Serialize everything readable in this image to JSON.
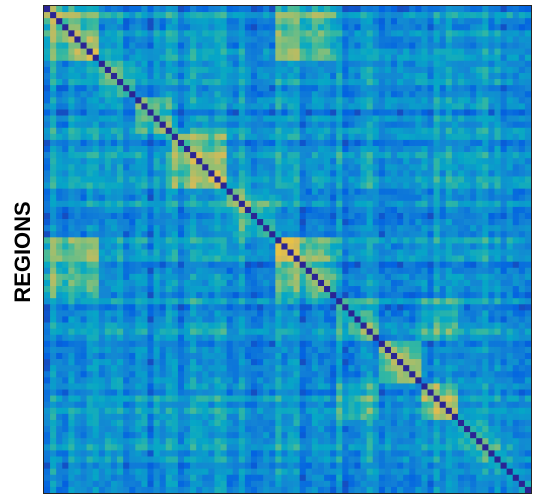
{
  "chart_data": {
    "type": "heatmap",
    "title": "",
    "xlabel": "",
    "ylabel": "REGIONS",
    "n_regions": 80,
    "diagonal_value": 0.0,
    "value_range": [
      0,
      1
    ],
    "colormap": "parula",
    "colormap_stops": [
      "#352a87",
      "#0363e1",
      "#1485d4",
      "#06a7c6",
      "#38b99e",
      "#92bf73",
      "#d9ba56",
      "#fcce2e",
      "#f9fb0e"
    ],
    "modules": [
      {
        "start": 0,
        "end": 9,
        "within": 0.74
      },
      {
        "start": 9,
        "end": 15,
        "within": 0.55
      },
      {
        "start": 15,
        "end": 21,
        "within": 0.62
      },
      {
        "start": 21,
        "end": 30,
        "within": 0.7
      },
      {
        "start": 30,
        "end": 38,
        "within": 0.66
      },
      {
        "start": 38,
        "end": 48,
        "within": 0.72
      },
      {
        "start": 48,
        "end": 55,
        "within": 0.6
      },
      {
        "start": 55,
        "end": 62,
        "within": 0.78
      },
      {
        "start": 62,
        "end": 68,
        "within": 0.68
      },
      {
        "start": 68,
        "end": 80,
        "within": 0.5
      }
    ],
    "cross_module_blocks": [
      {
        "rows": [
          0,
          9
        ],
        "cols": [
          38,
          48
        ],
        "value": 0.72
      },
      {
        "rows": [
          38,
          48
        ],
        "cols": [
          0,
          9
        ],
        "value": 0.72
      },
      {
        "rows": [
          0,
          9
        ],
        "cols": [
          21,
          30
        ],
        "value": 0.5
      },
      {
        "rows": [
          21,
          30
        ],
        "cols": [
          0,
          9
        ],
        "value": 0.5
      },
      {
        "rows": [
          62,
          68
        ],
        "cols": [
          48,
          55
        ],
        "value": 0.62
      },
      {
        "rows": [
          48,
          55
        ],
        "cols": [
          62,
          68
        ],
        "value": 0.62
      },
      {
        "rows": [
          62,
          80
        ],
        "cols": [
          20,
          29
        ],
        "value": 0.48
      },
      {
        "rows": [
          20,
          29
        ],
        "cols": [
          62,
          80
        ],
        "value": 0.48
      },
      {
        "rows": [
          38,
          47
        ],
        "cols": [
          68,
          80
        ],
        "value": 0.46
      },
      {
        "rows": [
          68,
          80
        ],
        "cols": [
          38,
          47
        ],
        "value": 0.46
      }
    ],
    "baseline": 0.28,
    "noise": 0.16,
    "seed": 7
  }
}
